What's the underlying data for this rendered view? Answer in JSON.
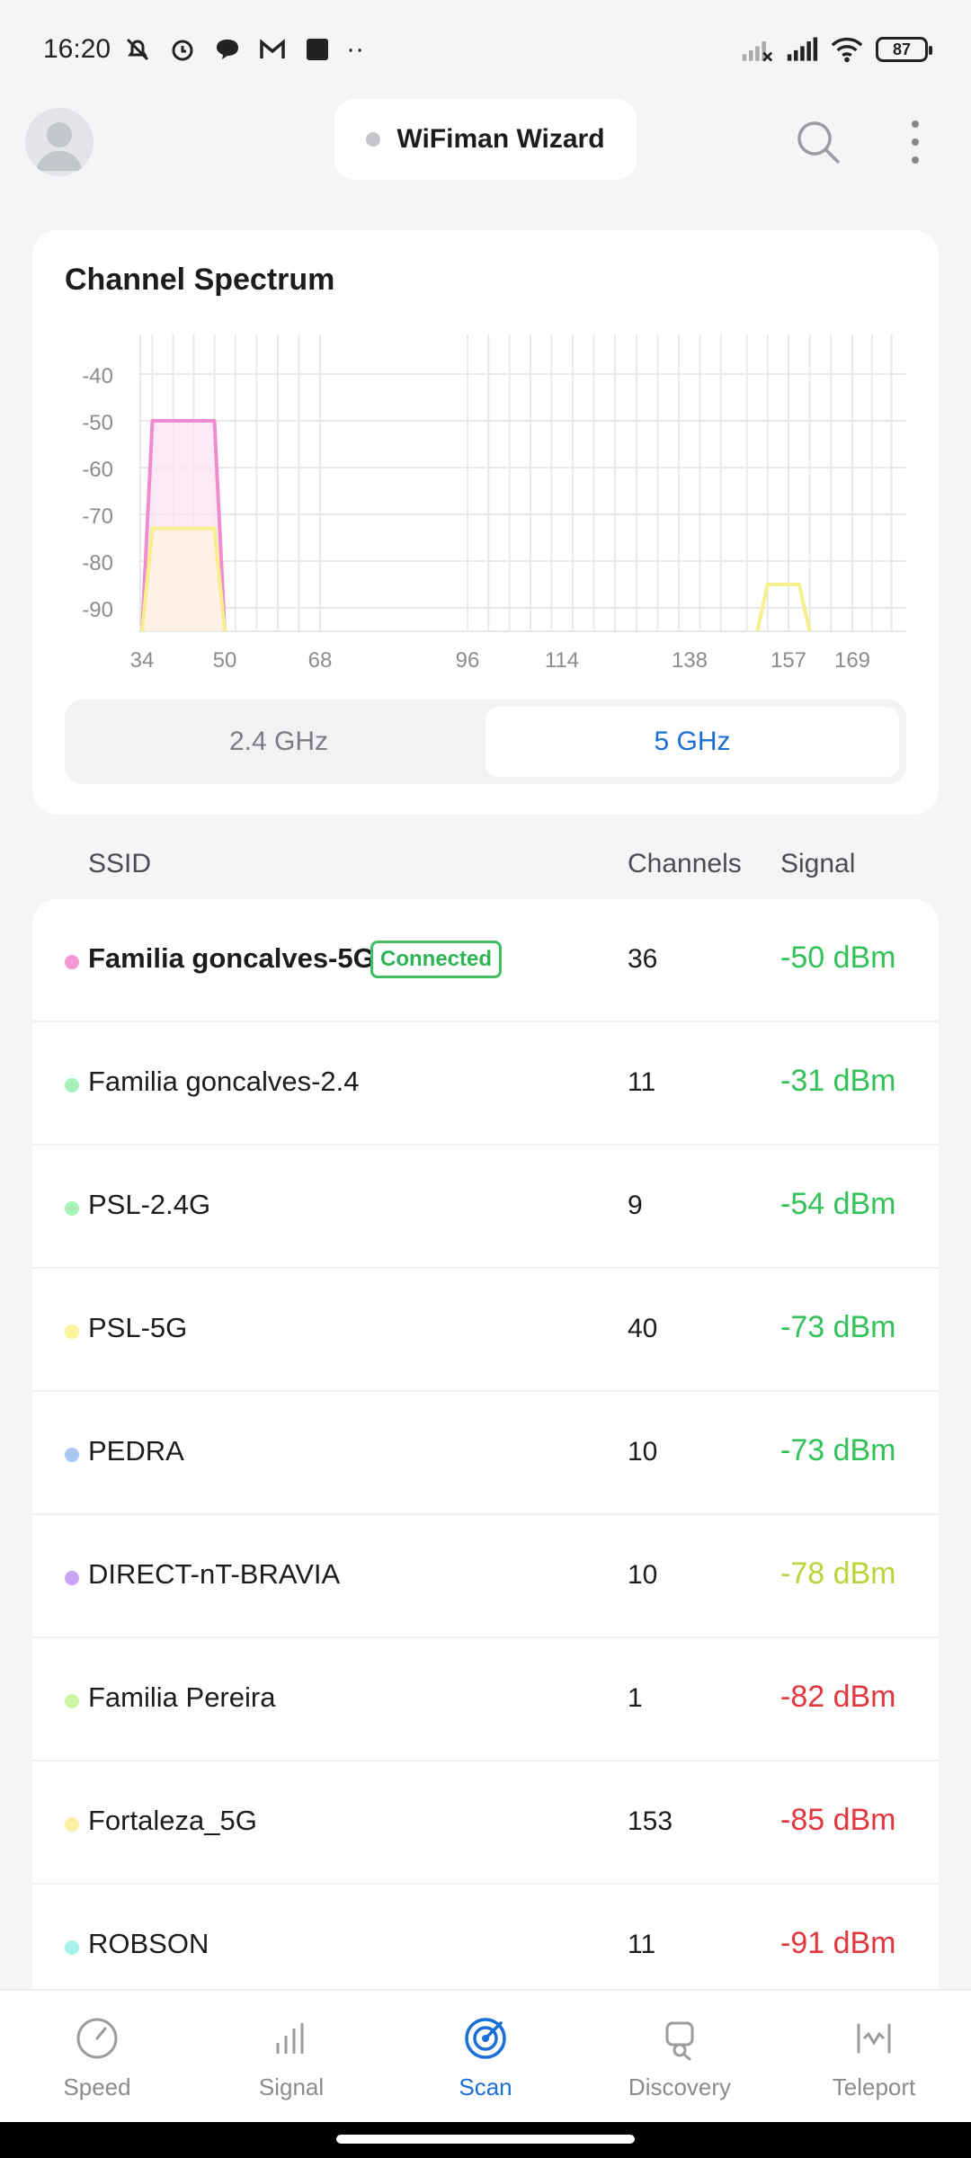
{
  "status_bar": {
    "time": "16:20",
    "battery": "87",
    "more": "··"
  },
  "header": {
    "wizard_label": "WiFiman Wizard"
  },
  "spectrum": {
    "title": "Channel Spectrum",
    "bands": [
      "2.4 GHz",
      "5 GHz"
    ],
    "active_band": "5 GHz"
  },
  "chart_data": {
    "type": "area",
    "title": "Channel Spectrum",
    "x_ticks": [
      "34",
      "50",
      "68",
      "96",
      "114",
      "138",
      "157",
      "169"
    ],
    "y_ticks": [
      "-40",
      "-50",
      "-60",
      "-70",
      "-80",
      "-90"
    ],
    "ylim": [
      -95,
      -35
    ],
    "grid": true,
    "series": [
      {
        "name": "Familia goncalves-5G",
        "color": "#f08bd0",
        "fill": "#fde1f3",
        "x": [
          34,
          36,
          48,
          50
        ],
        "y": [
          -95,
          -50,
          -50,
          -95
        ]
      },
      {
        "name": "PSL-5G",
        "color": "#f7ee8c",
        "fill": "#fff3df",
        "x": [
          34,
          36,
          48,
          50
        ],
        "y": [
          -95,
          -73,
          -73,
          -95
        ]
      },
      {
        "name": "Fortaleza_5G",
        "color": "#f7ee8c",
        "fill": "none",
        "x": [
          151,
          153,
          159,
          161
        ],
        "y": [
          -95,
          -85,
          -85,
          -95
        ]
      }
    ]
  },
  "list": {
    "headers": {
      "ssid": "SSID",
      "channels": "Channels",
      "signal": "Signal"
    },
    "networks": [
      {
        "ssid": "Familia goncalves-5G",
        "badge": "Connected",
        "channel": "36",
        "signal": "-50 dBm",
        "dot_color": "#f29ad6",
        "signal_color": "#34c159",
        "bold": true
      },
      {
        "ssid": "Familia goncalves-2.4",
        "channel": "11",
        "signal": "-31 dBm",
        "dot_color": "#a6f2b8",
        "signal_color": "#34c159"
      },
      {
        "ssid": "PSL-2.4G",
        "channel": "9",
        "signal": "-54 dBm",
        "dot_color": "#a6f2b8",
        "signal_color": "#34c159"
      },
      {
        "ssid": "PSL-5G",
        "channel": "40",
        "signal": "-73 dBm",
        "dot_color": "#fbf59a",
        "signal_color": "#34c159"
      },
      {
        "ssid": "PEDRA",
        "channel": "10",
        "signal": "-73 dBm",
        "dot_color": "#a9c9f3",
        "signal_color": "#34c159"
      },
      {
        "ssid": "DIRECT-nT-BRAVIA",
        "channel": "10",
        "signal": "-78 dBm",
        "dot_color": "#c9a6f3",
        "signal_color": "#b9d43a"
      },
      {
        "ssid": "Familia Pereira",
        "channel": "1",
        "signal": "-82 dBm",
        "dot_color": "#cdf5a6",
        "signal_color": "#e0383e"
      },
      {
        "ssid": "Fortaleza_5G",
        "channel": "153",
        "signal": "-85 dBm",
        "dot_color": "#fbeea6",
        "signal_color": "#e0383e"
      },
      {
        "ssid": "ROBSON",
        "channel": "11",
        "signal": "-91 dBm",
        "dot_color": "#a6f3f1",
        "signal_color": "#e0383e"
      }
    ]
  },
  "nav": {
    "items": [
      {
        "label": "Speed",
        "icon": "speed-gauge-icon"
      },
      {
        "label": "Signal",
        "icon": "signal-bars-icon"
      },
      {
        "label": "Scan",
        "icon": "scan-radar-icon",
        "active": true
      },
      {
        "label": "Discovery",
        "icon": "discovery-device-icon"
      },
      {
        "label": "Teleport",
        "icon": "teleport-icon"
      }
    ]
  }
}
